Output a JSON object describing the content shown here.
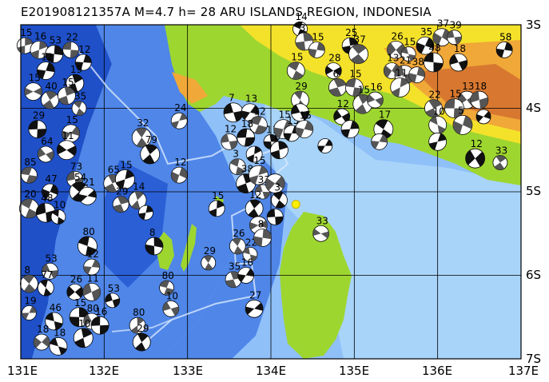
{
  "title": "E201908121357A  M=4.7  h= 28  ARU ISLANDS REGION, INDONESIA",
  "map": {
    "lon_range": [
      131,
      137
    ],
    "lat_range": [
      -7,
      -3
    ],
    "x_ticks": [
      {
        "value": 131,
        "label": "131E"
      },
      {
        "value": 132,
        "label": "132E"
      },
      {
        "value": 133,
        "label": "133E"
      },
      {
        "value": 134,
        "label": "134E"
      },
      {
        "value": 135,
        "label": "135E"
      },
      {
        "value": 136,
        "label": "136E"
      },
      {
        "value": 137,
        "label": "137E"
      }
    ],
    "y_ticks": [
      {
        "value": -3,
        "label": "3S"
      },
      {
        "value": -4,
        "label": "4S"
      },
      {
        "value": -5,
        "label": "5S"
      },
      {
        "value": -6,
        "label": "6S"
      },
      {
        "value": -7,
        "label": "7S"
      }
    ],
    "grid": true,
    "colors": {
      "deep_sea": "#1f50c8",
      "mid_sea": "#4f86e8",
      "shallow_sea": "#8fc0f8",
      "shelf": "#a8d4fa",
      "land_low": "#9ed630",
      "land_mid": "#f4e22a",
      "land_high": "#f0a838",
      "land_peak": "#d87830",
      "event_marker": "#ffee00"
    },
    "event": {
      "lon": 134.3,
      "lat": -5.15
    },
    "mechanisms": [
      {
        "lon": 131.05,
        "lat": -3.25,
        "label": "15"
      },
      {
        "lon": 131.22,
        "lat": -3.3,
        "label": "16"
      },
      {
        "lon": 131.4,
        "lat": -3.35,
        "label": "53"
      },
      {
        "lon": 131.6,
        "lat": -3.3,
        "label": "22"
      },
      {
        "lon": 131.75,
        "lat": -3.45,
        "label": "12"
      },
      {
        "lon": 131.3,
        "lat": -3.55,
        "label": "12"
      },
      {
        "lon": 131.65,
        "lat": -3.7,
        "label": "19"
      },
      {
        "lon": 131.15,
        "lat": -3.8,
        "label": "15"
      },
      {
        "lon": 131.35,
        "lat": -3.9,
        "label": "40"
      },
      {
        "lon": 131.55,
        "lat": -3.85,
        "label": "15"
      },
      {
        "lon": 131.7,
        "lat": -4.0,
        "label": "35"
      },
      {
        "lon": 131.2,
        "lat": -4.25,
        "label": "29"
      },
      {
        "lon": 131.6,
        "lat": -4.3,
        "label": "15"
      },
      {
        "lon": 131.3,
        "lat": -4.55,
        "label": "64"
      },
      {
        "lon": 131.55,
        "lat": -4.5,
        "label": "11"
      },
      {
        "lon": 131.1,
        "lat": -4.8,
        "label": "85"
      },
      {
        "lon": 131.35,
        "lat": -5.0,
        "label": "47"
      },
      {
        "lon": 131.65,
        "lat": -4.85,
        "label": "73"
      },
      {
        "lon": 131.7,
        "lat": -5.0,
        "label": "54"
      },
      {
        "lon": 131.8,
        "lat": -5.05,
        "label": "21"
      },
      {
        "lon": 131.1,
        "lat": -5.2,
        "label": "20"
      },
      {
        "lon": 131.3,
        "lat": -5.25,
        "label": "48"
      },
      {
        "lon": 131.45,
        "lat": -5.3,
        "label": "10"
      },
      {
        "lon": 132.1,
        "lat": -4.9,
        "label": "65"
      },
      {
        "lon": 132.25,
        "lat": -4.85,
        "label": "15"
      },
      {
        "lon": 132.2,
        "lat": -5.15,
        "label": "29"
      },
      {
        "lon": 132.4,
        "lat": -5.1,
        "label": "14"
      },
      {
        "lon": 132.5,
        "lat": -5.25,
        "label": ""
      },
      {
        "lon": 131.8,
        "lat": -5.65,
        "label": "80"
      },
      {
        "lon": 131.85,
        "lat": -5.9,
        "label": "12"
      },
      {
        "lon": 131.35,
        "lat": -5.95,
        "label": "53"
      },
      {
        "lon": 131.1,
        "lat": -6.1,
        "label": "8"
      },
      {
        "lon": 131.3,
        "lat": -6.15,
        "label": "77"
      },
      {
        "lon": 131.65,
        "lat": -6.2,
        "label": "26"
      },
      {
        "lon": 131.85,
        "lat": -6.2,
        "label": "11"
      },
      {
        "lon": 131.1,
        "lat": -6.45,
        "label": "19"
      },
      {
        "lon": 131.4,
        "lat": -6.55,
        "label": "46"
      },
      {
        "lon": 131.7,
        "lat": -6.5,
        "label": "15"
      },
      {
        "lon": 131.85,
        "lat": -6.55,
        "label": "80"
      },
      {
        "lon": 131.25,
        "lat": -6.8,
        "label": "18"
      },
      {
        "lon": 131.45,
        "lat": -6.85,
        "label": "18"
      },
      {
        "lon": 131.75,
        "lat": -6.75,
        "label": "10"
      },
      {
        "lon": 131.95,
        "lat": -6.6,
        "label": "16"
      },
      {
        "lon": 132.1,
        "lat": -6.3,
        "label": "53"
      },
      {
        "lon": 132.4,
        "lat": -6.6,
        "label": "80"
      },
      {
        "lon": 132.45,
        "lat": -6.8,
        "label": "29"
      },
      {
        "lon": 132.6,
        "lat": -5.65,
        "label": "8"
      },
      {
        "lon": 132.75,
        "lat": -6.15,
        "label": "80"
      },
      {
        "lon": 132.8,
        "lat": -6.4,
        "label": "10"
      },
      {
        "lon": 132.45,
        "lat": -4.35,
        "label": "32"
      },
      {
        "lon": 132.55,
        "lat": -4.55,
        "label": "79"
      },
      {
        "lon": 132.9,
        "lat": -4.15,
        "label": "24"
      },
      {
        "lon": 132.9,
        "lat": -4.8,
        "label": "12"
      },
      {
        "lon": 133.35,
        "lat": -5.2,
        "label": "15"
      },
      {
        "lon": 133.25,
        "lat": -5.85,
        "label": "29"
      },
      {
        "lon": 133.55,
        "lat": -4.05,
        "label": "7"
      },
      {
        "lon": 133.5,
        "lat": -4.4,
        "label": "12"
      },
      {
        "lon": 133.6,
        "lat": -4.7,
        "label": "3"
      },
      {
        "lon": 133.75,
        "lat": -4.05,
        "label": "13"
      },
      {
        "lon": 133.85,
        "lat": -4.2,
        "label": "12"
      },
      {
        "lon": 133.7,
        "lat": -4.35,
        "label": "18"
      },
      {
        "lon": 133.8,
        "lat": -4.55,
        "label": ""
      },
      {
        "lon": 133.7,
        "lat": -4.9,
        "label": "38"
      },
      {
        "lon": 133.85,
        "lat": -4.8,
        "label": "15"
      },
      {
        "lon": 134.0,
        "lat": -4.4,
        "label": "11"
      },
      {
        "lon": 134.1,
        "lat": -4.5,
        "label": "6"
      },
      {
        "lon": 133.9,
        "lat": -5.0,
        "label": "33"
      },
      {
        "lon": 134.05,
        "lat": -4.9,
        "label": ""
      },
      {
        "lon": 133.8,
        "lat": -5.2,
        "label": "12"
      },
      {
        "lon": 134.1,
        "lat": -5.1,
        "label": "3"
      },
      {
        "lon": 133.85,
        "lat": -5.4,
        "label": ""
      },
      {
        "lon": 134.05,
        "lat": -5.3,
        "label": ""
      },
      {
        "lon": 133.6,
        "lat": -5.65,
        "label": "26"
      },
      {
        "lon": 133.75,
        "lat": -5.75,
        "label": "22"
      },
      {
        "lon": 133.9,
        "lat": -5.55,
        "label": "8"
      },
      {
        "lon": 133.55,
        "lat": -6.05,
        "label": "35"
      },
      {
        "lon": 133.7,
        "lat": -6.0,
        "label": "16"
      },
      {
        "lon": 133.8,
        "lat": -6.4,
        "label": "27"
      },
      {
        "lon": 134.15,
        "lat": -4.25,
        "label": "15"
      },
      {
        "lon": 134.25,
        "lat": -4.3,
        "label": "15"
      },
      {
        "lon": 134.35,
        "lat": -3.05,
        "label": "14"
      },
      {
        "lon": 134.4,
        "lat": -3.2,
        "label": "3"
      },
      {
        "lon": 134.55,
        "lat": -3.3,
        "label": "15"
      },
      {
        "lon": 134.3,
        "lat": -3.55,
        "label": "15"
      },
      {
        "lon": 134.35,
        "lat": -3.9,
        "label": "29"
      },
      {
        "lon": 134.35,
        "lat": -4.05,
        "label": ""
      },
      {
        "lon": 134.4,
        "lat": -4.25,
        "label": "15"
      },
      {
        "lon": 134.65,
        "lat": -4.45,
        "label": ""
      },
      {
        "lon": 134.75,
        "lat": -3.55,
        "label": "28"
      },
      {
        "lon": 134.8,
        "lat": -3.75,
        "label": "6"
      },
      {
        "lon": 134.85,
        "lat": -4.1,
        "label": "12"
      },
      {
        "lon": 134.95,
        "lat": -3.25,
        "label": "25"
      },
      {
        "lon": 135.05,
        "lat": -3.35,
        "label": "37"
      },
      {
        "lon": 134.95,
        "lat": -4.25,
        "label": ""
      },
      {
        "lon": 135.0,
        "lat": -3.75,
        "label": "15"
      },
      {
        "lon": 135.1,
        "lat": -3.95,
        "label": "15"
      },
      {
        "lon": 135.25,
        "lat": -3.9,
        "label": "16"
      },
      {
        "lon": 135.35,
        "lat": -4.25,
        "label": "17"
      },
      {
        "lon": 134.6,
        "lat": -5.5,
        "label": "33"
      },
      {
        "lon": 135.3,
        "lat": -4.4,
        "label": ""
      },
      {
        "lon": 135.5,
        "lat": -3.3,
        "label": "26"
      },
      {
        "lon": 135.65,
        "lat": -3.35,
        "label": "15"
      },
      {
        "lon": 135.45,
        "lat": -3.55,
        "label": "13"
      },
      {
        "lon": 135.6,
        "lat": -3.6,
        "label": "21"
      },
      {
        "lon": 135.75,
        "lat": -3.6,
        "label": "38"
      },
      {
        "lon": 135.55,
        "lat": -3.75,
        "label": "11"
      },
      {
        "lon": 135.85,
        "lat": -3.25,
        "label": "35"
      },
      {
        "lon": 136.05,
        "lat": -3.15,
        "label": "37"
      },
      {
        "lon": 136.2,
        "lat": -3.15,
        "label": "39"
      },
      {
        "lon": 136.25,
        "lat": -3.45,
        "label": "18"
      },
      {
        "lon": 135.95,
        "lat": -3.45,
        "label": "48"
      },
      {
        "lon": 136.35,
        "lat": -3.9,
        "label": "13"
      },
      {
        "lon": 136.5,
        "lat": -3.9,
        "label": "18"
      },
      {
        "lon": 135.95,
        "lat": -4.0,
        "label": "22"
      },
      {
        "lon": 136.0,
        "lat": -4.2,
        "label": "10"
      },
      {
        "lon": 136.2,
        "lat": -4.0,
        "label": "15"
      },
      {
        "lon": 136.3,
        "lat": -4.2,
        "label": "5"
      },
      {
        "lon": 136.55,
        "lat": -4.1,
        "label": ""
      },
      {
        "lon": 136.0,
        "lat": -4.4,
        "label": ""
      },
      {
        "lon": 136.45,
        "lat": -4.6,
        "label": "12"
      },
      {
        "lon": 136.8,
        "lat": -3.3,
        "label": "58"
      },
      {
        "lon": 136.75,
        "lat": -4.65,
        "label": "33"
      }
    ]
  }
}
